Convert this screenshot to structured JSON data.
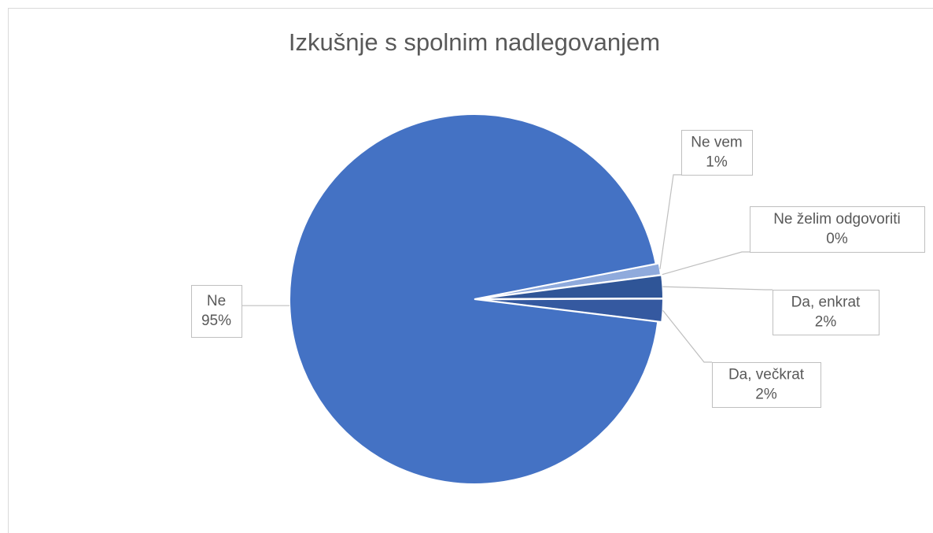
{
  "chart_data": {
    "type": "pie",
    "title": "Izkušnje s spolnim nadlegovanjem",
    "categories": [
      "Ne vem",
      "Ne želim odgovoriti",
      "Da, enkrat",
      "Da, večkrat",
      "Ne"
    ],
    "values": [
      1,
      0,
      2,
      2,
      95
    ],
    "value_labels": [
      "1%",
      "0%",
      "2%",
      "2%",
      "95%"
    ],
    "colors": [
      "#8faadc",
      "#4472c4",
      "#2f5597",
      "#3559a0",
      "#4472c4"
    ]
  }
}
